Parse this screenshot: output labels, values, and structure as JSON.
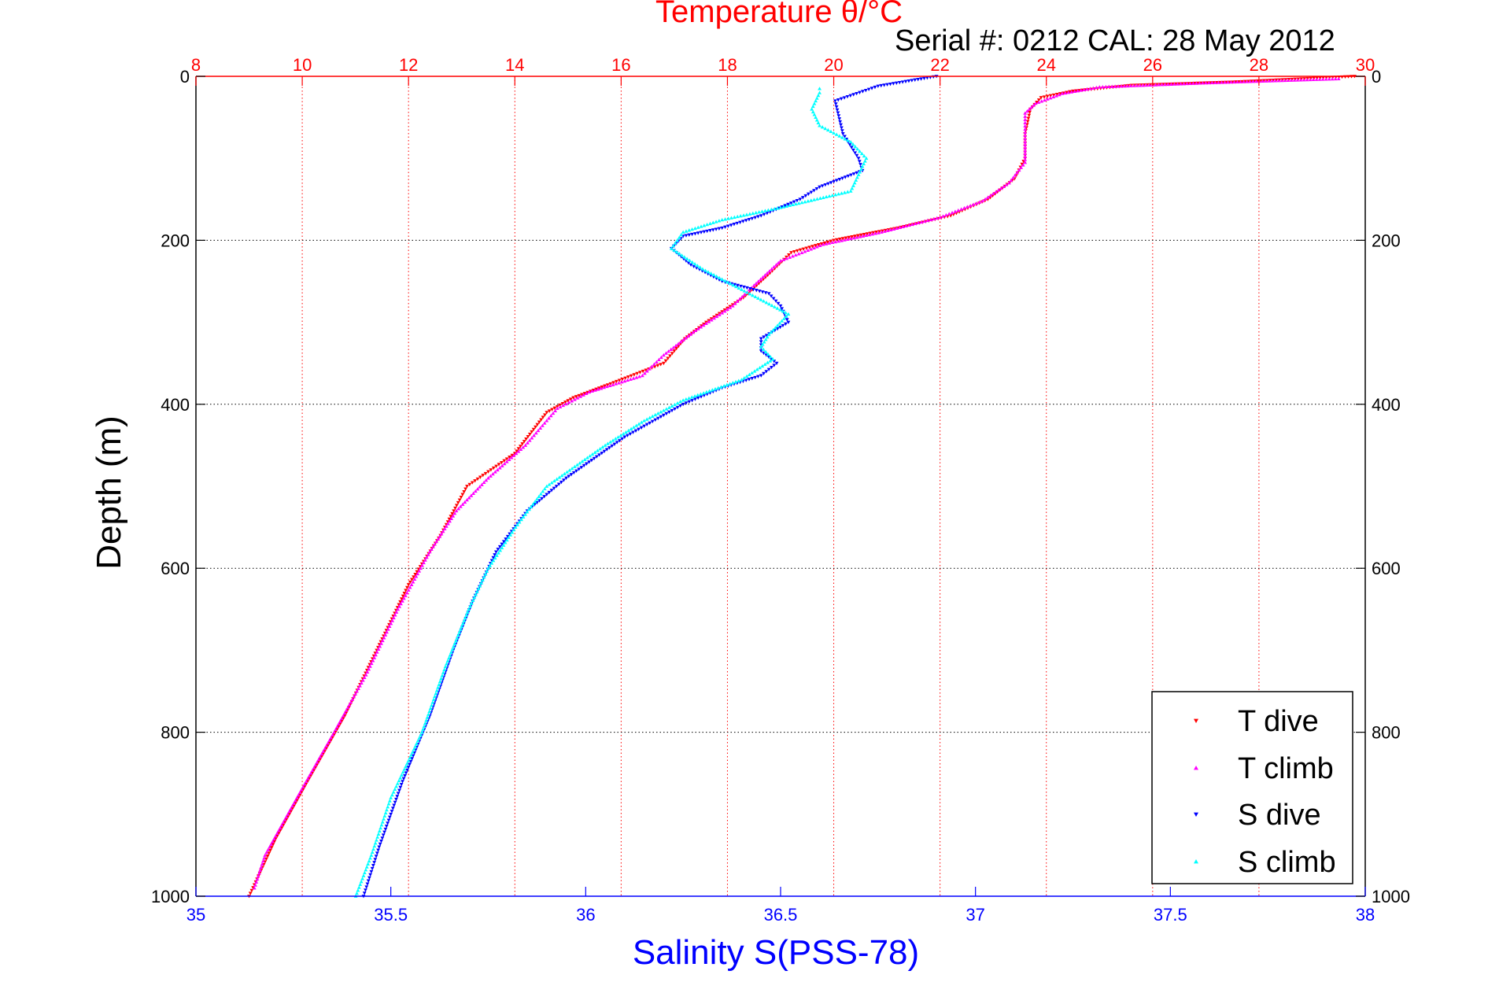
{
  "chart_data": {
    "type": "scatter",
    "title": "Temperature θ/°C",
    "subtitle": "Serial #: 0212  CAL: 28 May 2012",
    "xlabel": "Salinity S(PSS-78)",
    "ylabel": "Depth (m)",
    "grid": true,
    "legend_position": "bottom-right",
    "y_reversed": true,
    "ylim": [
      0,
      1000
    ],
    "xlim_bottom": [
      35,
      38
    ],
    "xlim_top": [
      8,
      30
    ],
    "y_ticks": [
      "0",
      "200",
      "400",
      "600",
      "800",
      "1000"
    ],
    "x_ticks_bottom": [
      "35",
      "35.5",
      "36",
      "36.5",
      "37",
      "37.5",
      "38"
    ],
    "x_ticks_top": [
      "8",
      "10",
      "12",
      "14",
      "16",
      "18",
      "20",
      "22",
      "24",
      "26",
      "28",
      "30"
    ],
    "colors": {
      "axis": "#000000",
      "top_axis": "#ff0000",
      "bottom_axis": "#0000ff",
      "grid_top": "#ff0000",
      "grid_y": "#000000"
    },
    "series": [
      {
        "name": "T dive",
        "axis": "top",
        "marker": "triangle-down",
        "color": "#ff0000",
        "points": [
          [
            29.8,
            0
          ],
          [
            27.5,
            7
          ],
          [
            25.6,
            11
          ],
          [
            24.5,
            18
          ],
          [
            23.9,
            26
          ],
          [
            23.7,
            40
          ],
          [
            23.6,
            70
          ],
          [
            23.6,
            100
          ],
          [
            23.4,
            125
          ],
          [
            22.9,
            150
          ],
          [
            22.2,
            170
          ],
          [
            21.2,
            185
          ],
          [
            20.0,
            200
          ],
          [
            19.2,
            215
          ],
          [
            18.8,
            240
          ],
          [
            18.3,
            270
          ],
          [
            17.6,
            300
          ],
          [
            17.2,
            320
          ],
          [
            16.8,
            350
          ],
          [
            15.8,
            375
          ],
          [
            15.1,
            392
          ],
          [
            14.6,
            410
          ],
          [
            14.0,
            460
          ],
          [
            13.1,
            500
          ],
          [
            12.6,
            560
          ],
          [
            12.0,
            620
          ],
          [
            11.4,
            700
          ],
          [
            10.8,
            780
          ],
          [
            10.1,
            860
          ],
          [
            9.5,
            930
          ],
          [
            9.0,
            1000
          ]
        ]
      },
      {
        "name": "T climb",
        "axis": "top",
        "marker": "triangle-up",
        "color": "#ff00ff",
        "points": [
          [
            29.5,
            3
          ],
          [
            27.0,
            8
          ],
          [
            25.0,
            13
          ],
          [
            24.3,
            21
          ],
          [
            23.8,
            33
          ],
          [
            23.6,
            45
          ],
          [
            23.6,
            80
          ],
          [
            23.6,
            105
          ],
          [
            23.3,
            130
          ],
          [
            22.8,
            152
          ],
          [
            22.0,
            172
          ],
          [
            20.9,
            190
          ],
          [
            19.8,
            205
          ],
          [
            19.0,
            225
          ],
          [
            18.5,
            255
          ],
          [
            18.1,
            280
          ],
          [
            17.4,
            310
          ],
          [
            16.8,
            340
          ],
          [
            16.4,
            365
          ],
          [
            15.4,
            385
          ],
          [
            14.8,
            405
          ],
          [
            14.2,
            450
          ],
          [
            13.5,
            490
          ],
          [
            12.9,
            530
          ],
          [
            12.4,
            580
          ],
          [
            11.8,
            650
          ],
          [
            11.2,
            730
          ],
          [
            10.6,
            800
          ],
          [
            9.9,
            880
          ],
          [
            9.3,
            950
          ],
          [
            9.1,
            990
          ]
        ]
      },
      {
        "name": "S dive",
        "axis": "bottom",
        "marker": "triangle-down",
        "color": "#0000ff",
        "points": [
          [
            36.9,
            0
          ],
          [
            36.75,
            12
          ],
          [
            36.64,
            30
          ],
          [
            36.66,
            70
          ],
          [
            36.7,
            100
          ],
          [
            36.71,
            115
          ],
          [
            36.6,
            135
          ],
          [
            36.55,
            150
          ],
          [
            36.45,
            170
          ],
          [
            36.35,
            185
          ],
          [
            36.25,
            195
          ],
          [
            36.22,
            210
          ],
          [
            36.27,
            230
          ],
          [
            36.35,
            250
          ],
          [
            36.47,
            265
          ],
          [
            36.5,
            280
          ],
          [
            36.52,
            300
          ],
          [
            36.45,
            320
          ],
          [
            36.45,
            335
          ],
          [
            36.49,
            350
          ],
          [
            36.45,
            365
          ],
          [
            36.35,
            380
          ],
          [
            36.25,
            400
          ],
          [
            36.1,
            440
          ],
          [
            35.95,
            490
          ],
          [
            35.85,
            530
          ],
          [
            35.77,
            580
          ],
          [
            35.71,
            640
          ],
          [
            35.66,
            700
          ],
          [
            35.6,
            780
          ],
          [
            35.53,
            860
          ],
          [
            35.47,
            940
          ],
          [
            35.43,
            1000
          ]
        ]
      },
      {
        "name": "S climb",
        "axis": "bottom",
        "marker": "triangle-up",
        "color": "#00ffff",
        "points": [
          [
            36.6,
            15
          ],
          [
            36.6,
            20
          ],
          [
            36.58,
            40
          ],
          [
            36.6,
            60
          ],
          [
            36.68,
            80
          ],
          [
            36.72,
            100
          ],
          [
            36.7,
            120
          ],
          [
            36.68,
            140
          ],
          [
            36.5,
            160
          ],
          [
            36.35,
            175
          ],
          [
            36.25,
            190
          ],
          [
            36.22,
            210
          ],
          [
            36.3,
            235
          ],
          [
            36.4,
            260
          ],
          [
            36.52,
            290
          ],
          [
            36.47,
            315
          ],
          [
            36.45,
            330
          ],
          [
            36.48,
            345
          ],
          [
            36.4,
            370
          ],
          [
            36.25,
            395
          ],
          [
            36.15,
            420
          ],
          [
            36.05,
            450
          ],
          [
            35.9,
            500
          ],
          [
            35.82,
            550
          ],
          [
            35.75,
            600
          ],
          [
            35.7,
            650
          ],
          [
            35.64,
            720
          ],
          [
            35.58,
            800
          ],
          [
            35.5,
            880
          ],
          [
            35.45,
            950
          ],
          [
            35.41,
            1000
          ]
        ]
      }
    ]
  }
}
